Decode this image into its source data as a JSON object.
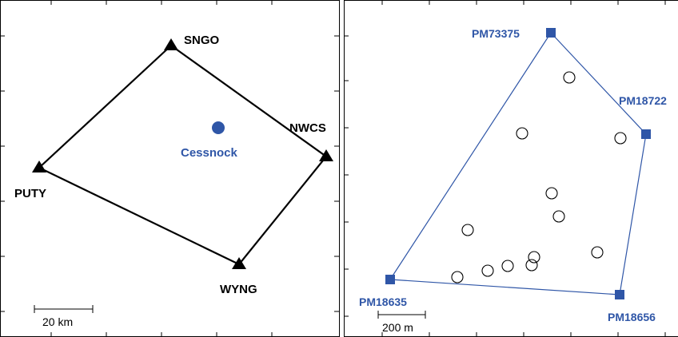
{
  "left_panel": {
    "stations": [
      {
        "id": "SNGO",
        "label": "SNGO"
      },
      {
        "id": "NWCS",
        "label": "NWCS"
      },
      {
        "id": "WYNG",
        "label": "WYNG"
      },
      {
        "id": "PUTY",
        "label": "PUTY"
      }
    ],
    "city_label": "Cessnock",
    "scale_label": "20 km"
  },
  "right_panel": {
    "marks": [
      {
        "id": "PM73375",
        "label": "PM73375"
      },
      {
        "id": "PM18722",
        "label": "PM18722"
      },
      {
        "id": "PM18656",
        "label": "PM18656"
      },
      {
        "id": "PM18635",
        "label": "PM18635"
      }
    ],
    "scale_label": "200 m"
  },
  "colors": {
    "blue": "#2f56a7",
    "black": "#000000"
  }
}
